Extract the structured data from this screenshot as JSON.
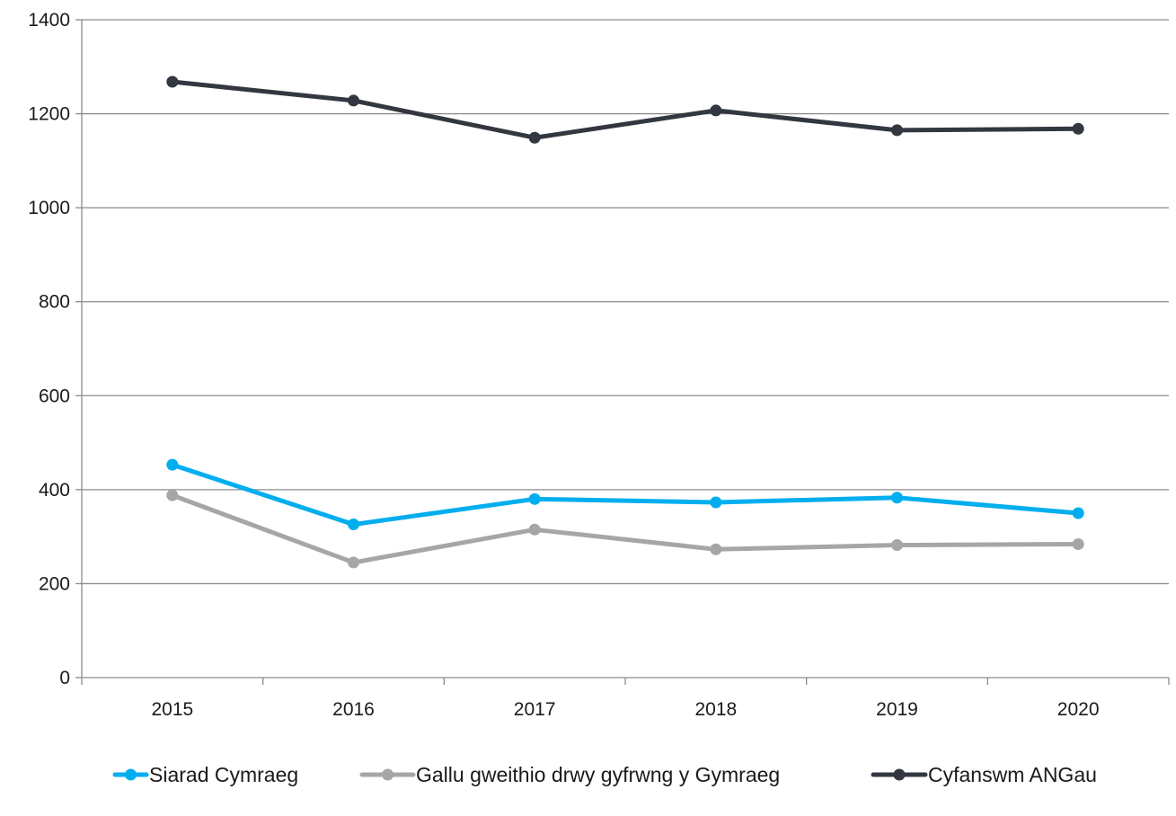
{
  "chart_data": {
    "type": "line",
    "title": "",
    "xlabel": "",
    "ylabel": "",
    "categories": [
      "2015",
      "2016",
      "2017",
      "2018",
      "2019",
      "2020"
    ],
    "ylim": [
      0,
      1400
    ],
    "yticks": [
      0,
      200,
      400,
      600,
      800,
      1000,
      1200,
      1400
    ],
    "grid": "horizontal",
    "legend_position": "bottom",
    "series": [
      {
        "name": "Siarad Cymraeg",
        "color": "#00AEEF",
        "values": [
          453,
          326,
          380,
          373,
          383,
          350
        ]
      },
      {
        "name": "Gallu gweithio drwy gyfrwng y Gymraeg",
        "color": "#A6A6A6",
        "values": [
          388,
          245,
          315,
          273,
          282,
          284
        ]
      },
      {
        "name": "Cyfanswm ANGau",
        "color": "#333740",
        "values": [
          1268,
          1228,
          1149,
          1207,
          1165,
          1168
        ]
      }
    ]
  }
}
